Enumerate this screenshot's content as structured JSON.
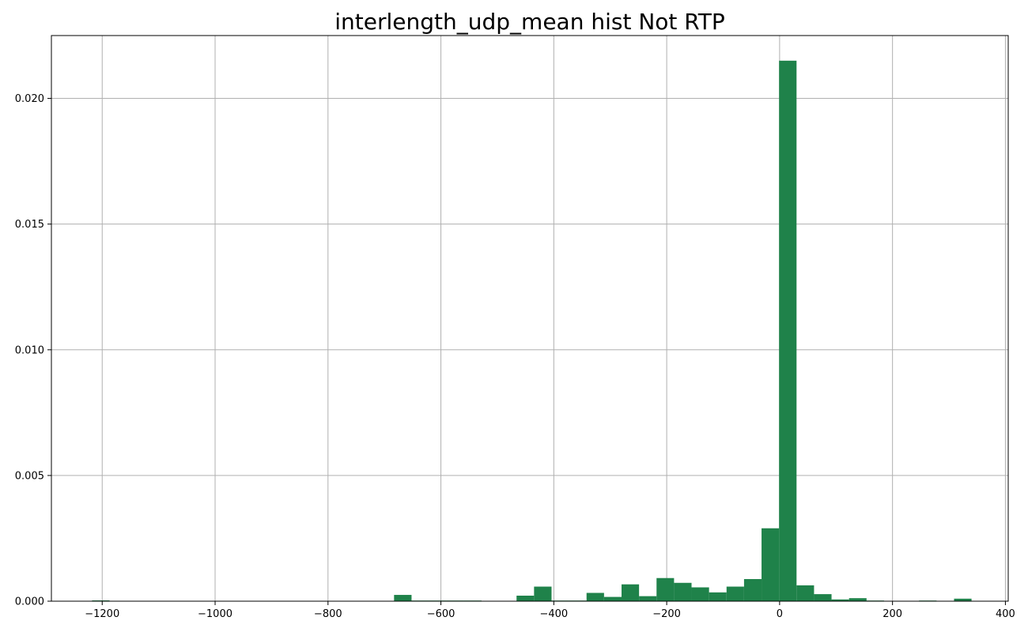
{
  "chart_data": {
    "type": "bar",
    "title": "interlength_udp_mean hist Not RTP",
    "xlabel": "",
    "ylabel": "",
    "xlim": [
      -1290,
      405
    ],
    "ylim": [
      0,
      0.0225
    ],
    "grid": true,
    "bar_color": "#1f824a",
    "grid_color": "#b0b0b0",
    "x_ticks": [
      -1200,
      -1000,
      -800,
      -600,
      -400,
      -200,
      0,
      200,
      400
    ],
    "x_tick_labels": [
      "−1200",
      "−1000",
      "−800",
      "−600",
      "−400",
      "−200",
      "0",
      "200",
      "400"
    ],
    "y_ticks": [
      0,
      0.005,
      0.01,
      0.015,
      0.02
    ],
    "y_tick_labels": [
      "0.000",
      "0.005",
      "0.010",
      "0.015",
      "0.020"
    ],
    "bin_width": 31,
    "bins": [
      {
        "x0": -1218,
        "value": 3e-05
      },
      {
        "x0": -683,
        "value": 0.00025
      },
      {
        "x0": -652,
        "value": 2e-05
      },
      {
        "x0": -621,
        "value": 2e-05
      },
      {
        "x0": -590,
        "value": 2e-05
      },
      {
        "x0": -559,
        "value": 2e-05
      },
      {
        "x0": -466,
        "value": 0.00022
      },
      {
        "x0": -435,
        "value": 0.00058
      },
      {
        "x0": -404,
        "value": 2e-05
      },
      {
        "x0": -373,
        "value": 2e-05
      },
      {
        "x0": -342,
        "value": 0.00033
      },
      {
        "x0": -311,
        "value": 0.00017
      },
      {
        "x0": -280,
        "value": 0.00067
      },
      {
        "x0": -249,
        "value": 0.0002
      },
      {
        "x0": -218,
        "value": 0.00092
      },
      {
        "x0": -187,
        "value": 0.00073
      },
      {
        "x0": -156,
        "value": 0.00055
      },
      {
        "x0": -125,
        "value": 0.00035
      },
      {
        "x0": -94,
        "value": 0.00058
      },
      {
        "x0": -63,
        "value": 0.00088
      },
      {
        "x0": -32,
        "value": 0.0029
      },
      {
        "x0": -1,
        "value": 0.0215
      },
      {
        "x0": 30,
        "value": 0.00063
      },
      {
        "x0": 61,
        "value": 0.00028
      },
      {
        "x0": 92,
        "value": 7e-05
      },
      {
        "x0": 123,
        "value": 0.00012
      },
      {
        "x0": 154,
        "value": 2e-05
      },
      {
        "x0": 247,
        "value": 2e-05
      },
      {
        "x0": 309,
        "value": 0.0001
      }
    ]
  }
}
